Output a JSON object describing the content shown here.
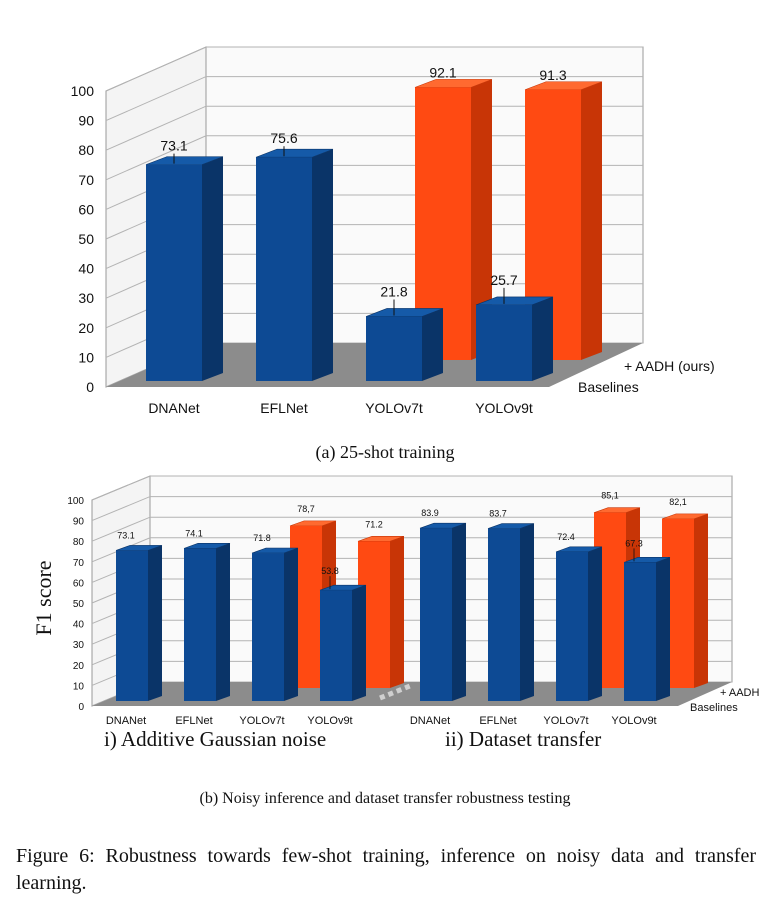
{
  "chart_data": [
    {
      "type": "bar",
      "subtitle": "(a) 25-shot training",
      "categories": [
        "DNANet",
        "EFLNet",
        "YOLOv7t",
        "YOLOv9t"
      ],
      "series": [
        {
          "name": "Baselines",
          "values": [
            73.1,
            75.6,
            21.8,
            25.7
          ]
        },
        {
          "name": "+ AADH (ours)",
          "values": [
            null,
            null,
            92.1,
            91.3
          ]
        }
      ],
      "data_labels": {
        "Baselines": [
          "73.1",
          "75.6",
          "21.8",
          "25.7"
        ],
        "+ AADH (ours)": [
          "",
          "",
          "92.1",
          "91.3"
        ]
      },
      "yticks": [
        "0",
        "10",
        "20",
        "30",
        "40",
        "50",
        "60",
        "70",
        "80",
        "90",
        "100"
      ],
      "ylim": [
        0,
        100
      ],
      "grid": true,
      "legend_placement": "right"
    },
    {
      "type": "bar",
      "subtitle": "i) Additive Gaussian noise",
      "categories": [
        "DNANet",
        "EFLNet",
        "YOLOv7t",
        "YOLOv9t"
      ],
      "series": [
        {
          "name": "Baselines",
          "values": [
            73.1,
            74.1,
            71.8,
            53.8
          ]
        },
        {
          "name": "+ AADH",
          "values": [
            null,
            null,
            78.7,
            71.2
          ]
        }
      ],
      "data_labels": {
        "Baselines": [
          "73.1",
          "74.1",
          "71.8",
          "53.8"
        ],
        "+ AADH": [
          "",
          "",
          "78,7",
          "71.2"
        ]
      },
      "ylabel": "F1 score",
      "ylim": [
        0,
        100
      ]
    },
    {
      "type": "bar",
      "subtitle": "ii) Dataset transfer",
      "categories": [
        "DNANet",
        "EFLNet",
        "YOLOv7t",
        "YOLOv9t"
      ],
      "series": [
        {
          "name": "Baselines",
          "values": [
            83.9,
            83.7,
            72.4,
            67.3
          ]
        },
        {
          "name": "+ AADH",
          "values": [
            null,
            null,
            85.1,
            82.1
          ]
        }
      ],
      "data_labels": {
        "Baselines": [
          "83.9",
          "83.7",
          "72.4",
          "67.3"
        ],
        "+ AADH": [
          "",
          "",
          "85,1",
          "82,1"
        ]
      },
      "ylim": [
        0,
        100
      ]
    }
  ],
  "panel_b": {
    "yticks": [
      "0",
      "10",
      "20",
      "30",
      "40",
      "50",
      "60",
      "70",
      "80",
      "90",
      "100"
    ],
    "legend": [
      "+ AADH",
      "Baselines"
    ],
    "caption": "(b) Noisy inference and dataset transfer robustness testing"
  },
  "figure_caption": "Figure 6: Robustness towards few-shot training, inference on noisy data and transfer learning.",
  "colors": {
    "baseline_front": "#0d4a94",
    "baseline_side": "#0a3468",
    "baseline_top": "#155aa8",
    "ours_front": "#ff4a12",
    "ours_side": "#c83506",
    "ours_top": "#ff6a30",
    "floor": "#8c8c8c",
    "grid": "#b3b3b3"
  }
}
